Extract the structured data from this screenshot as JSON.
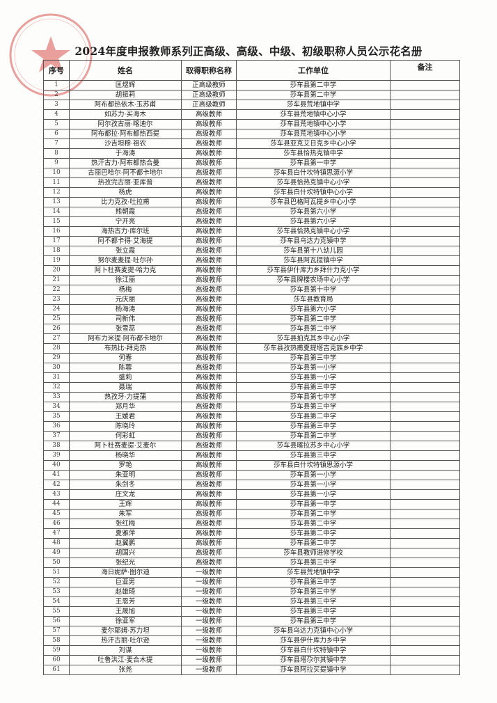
{
  "title": "2024年度申报教师系列正高级、高级、中级、初级职称人员公示花名册",
  "seal_color": "#d9534f",
  "headers": {
    "no": "序号",
    "name": "姓名",
    "title": "取得职称名称",
    "unit": "工作单位",
    "note": "备注"
  },
  "rows": [
    [
      "1",
      "匡煜辉",
      "正高级教师",
      "莎车县第二中学",
      ""
    ],
    [
      "2",
      "胡振莉",
      "正高级教师",
      "莎车县第二中学",
      ""
    ],
    [
      "3",
      "阿布都热依木·玉苏甫",
      "正高级教师",
      "莎车县荒地镇中学",
      ""
    ],
    [
      "4",
      "如苏力·买海木",
      "高级教师",
      "莎车县荒地镇中心小学",
      ""
    ],
    [
      "5",
      "阿尔孜古丽·喀迪尔",
      "高级教师",
      "莎车县荒地镇中心小学",
      ""
    ],
    [
      "6",
      "阿布都拉·阿布都热西提",
      "高级教师",
      "莎车县荒地镇中心小学",
      ""
    ],
    [
      "7",
      "沙吉坦穆·祖农",
      "高级教师",
      "莎车县亚克艾日克乡中心小学",
      ""
    ],
    [
      "8",
      "于海涛",
      "高级教师",
      "莎车县恰热克镇中学",
      ""
    ],
    [
      "9",
      "热汗古力·阿布都热合曼",
      "高级教师",
      "莎车县第一中学",
      ""
    ],
    [
      "10",
      "古丽巴哈尔·阿不都卡地尔",
      "高级教师",
      "莎车县白什坎特镇思源小学",
      ""
    ],
    [
      "11",
      "热孜完古丽·亚库普",
      "高级教师",
      "莎车县恰热克镇中心小学",
      ""
    ],
    [
      "12",
      "杨虎",
      "高级教师",
      "莎车县白什坎特镇中心小学",
      ""
    ],
    [
      "13",
      "比力克孜·吐拉甫",
      "高级教师",
      "莎车县巴格阿瓦提乡中心小学",
      ""
    ],
    [
      "14",
      "熊朝霞",
      "高级教师",
      "莎车县第六小学",
      ""
    ],
    [
      "15",
      "宁开亮",
      "高级教师",
      "莎车县第六小学",
      ""
    ],
    [
      "16",
      "海热古力·库尔班",
      "高级教师",
      "莎车县恰热克镇中心小学",
      ""
    ],
    [
      "17",
      "阿不都卡得·艾海提",
      "高级教师",
      "莎车县乌达力克镇中学",
      ""
    ],
    [
      "18",
      "张立霞",
      "高级教师",
      "莎车县第十八幼儿园",
      ""
    ],
    [
      "19",
      "努尔麦麦提·吐尔孙",
      "高级教师",
      "莎车县阿瓦提镇中学",
      ""
    ],
    [
      "20",
      "阿卜杜赛麦提·哈力克",
      "高级教师",
      "莎车县伊什库力乡拜什力克小学",
      ""
    ],
    [
      "21",
      "徐江丽",
      "高级教师",
      "莎车县牌楼农场中心小学",
      ""
    ],
    [
      "22",
      "杨梅",
      "高级教师",
      "莎车县第十中学",
      ""
    ],
    [
      "23",
      "元庆丽",
      "高级教师",
      "莎车县教育局",
      ""
    ],
    [
      "24",
      "杨海涛",
      "高级教师",
      "莎车县第六小学",
      ""
    ],
    [
      "25",
      "司新伟",
      "高级教师",
      "莎车县第二中学",
      ""
    ],
    [
      "26",
      "张雪蕊",
      "高级教师",
      "莎车县第二中学",
      ""
    ],
    [
      "27",
      "阿布力米提·阿布都卡地尔",
      "高级教师",
      "莎车县拍克其乡中心小学",
      ""
    ],
    [
      "28",
      "布热比·拜克热",
      "高级教师",
      "莎车县孜热甫夏提塔吉克族乡中学",
      ""
    ],
    [
      "29",
      "何春",
      "高级教师",
      "莎车县第三中学",
      ""
    ],
    [
      "30",
      "陈蓉",
      "高级教师",
      "莎车县第一小学",
      ""
    ],
    [
      "31",
      "盛莉",
      "高级教师",
      "莎车县第一小学",
      ""
    ],
    [
      "32",
      "聂瑞",
      "高级教师",
      "莎车县第三中学",
      ""
    ],
    [
      "33",
      "热孜牙·力提蒲",
      "高级教师",
      "莎车县第七中学",
      ""
    ],
    [
      "34",
      "郑月华",
      "高级教师",
      "莎车县第三中学",
      ""
    ],
    [
      "35",
      "王媛君",
      "高级教师",
      "莎车县第二中学",
      ""
    ],
    [
      "36",
      "陈晓玲",
      "高级教师",
      "莎车县第三中学",
      ""
    ],
    [
      "37",
      "何彩虹",
      "高级教师",
      "莎车县第二中学",
      ""
    ],
    [
      "38",
      "阿卜杜赛麦提·艾麦尔",
      "高级教师",
      "莎车县喀拉苏乡中心小学",
      ""
    ],
    [
      "39",
      "杨晓华",
      "高级教师",
      "莎车县第三中学",
      ""
    ],
    [
      "40",
      "罗艳",
      "高级教师",
      "莎车县白什坎特镇思源小学",
      ""
    ],
    [
      "41",
      "朱亚明",
      "高级教师",
      "莎车县第一小学",
      ""
    ],
    [
      "42",
      "朱剑冬",
      "高级教师",
      "莎车县第一小学",
      ""
    ],
    [
      "43",
      "庄文龙",
      "高级教师",
      "莎车县第一小学",
      ""
    ],
    [
      "44",
      "王辉",
      "高级教师",
      "莎车县第一中学",
      ""
    ],
    [
      "45",
      "朱军",
      "高级教师",
      "莎车县第二中学",
      ""
    ],
    [
      "46",
      "张红梅",
      "高级教师",
      "莎车县第二中学",
      ""
    ],
    [
      "47",
      "夏雅萍",
      "高级教师",
      "莎车县第二中学",
      ""
    ],
    [
      "48",
      "赵翼鹏",
      "高级教师",
      "莎车县第二中学",
      ""
    ],
    [
      "49",
      "胡国兴",
      "高级教师",
      "莎车县教师进修学校",
      ""
    ],
    [
      "50",
      "张纪光",
      "高级教师",
      "莎车县第三中学",
      ""
    ],
    [
      "51",
      "海日妮萨·图尔迪",
      "一级教师",
      "莎车县荒地镇中学",
      ""
    ],
    [
      "52",
      "巨亚男",
      "一级教师",
      "莎车县第三中学",
      ""
    ],
    [
      "53",
      "赵雄琦",
      "一级教师",
      "莎车县第三中学",
      ""
    ],
    [
      "54",
      "王恩芳",
      "一级教师",
      "莎车县第三中学",
      ""
    ],
    [
      "55",
      "王晟旭",
      "一级教师",
      "莎车县第三中学",
      ""
    ],
    [
      "56",
      "徐亚军",
      "一级教师",
      "莎车县第三中学",
      ""
    ],
    [
      "57",
      "麦尔耶姆·苏力坦",
      "一级教师",
      "莎车县乌达力克镇中心小学",
      ""
    ],
    [
      "58",
      "热汗古丽·吐尔逊",
      "一级教师",
      "莎车县伊什库力乡中学",
      ""
    ],
    [
      "59",
      "刘谋",
      "一级教师",
      "莎车县白什坎特镇中学",
      ""
    ],
    [
      "60",
      "吐鲁洪江·麦合木提",
      "一级教师",
      "莎车县塔尕尔其镇中学",
      ""
    ],
    [
      "61",
      "张尧",
      "一级教师",
      "莎车县阿拉买提镇中学",
      ""
    ]
  ]
}
